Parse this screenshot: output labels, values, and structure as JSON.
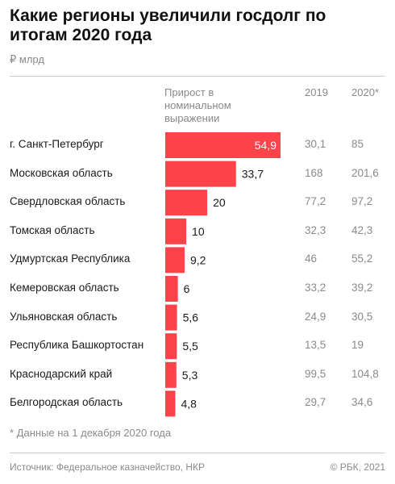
{
  "title": "Какие регионы увеличили госдолг по итогам 2020 года",
  "unit": "₽ млрд",
  "columns": {
    "growth": "Прирост в номинальном выражении",
    "y2019": "2019",
    "y2020": "2020*"
  },
  "footnote": "* Данные на 1 декабря 2020 года",
  "source": "Источник: Федеральное казначейство, НКР",
  "copyright": "© РБК, 2021",
  "colors": {
    "bar": "#fc4349",
    "value_inside": "#ffffff",
    "value_outside": "#1a1a1a"
  },
  "chart_data": {
    "type": "bar",
    "orientation": "horizontal",
    "categories": [
      "г. Санкт-Петербург",
      "Московская область",
      "Свердловская область",
      "Томская область",
      "Удмуртская Республика",
      "Кемеровская область",
      "Ульяновская область",
      "Республика Башкортостан",
      "Краснодарский край",
      "Белгородская область"
    ],
    "values": [
      54.9,
      33.7,
      20,
      10,
      9.2,
      6,
      5.6,
      5.5,
      5.3,
      4.8
    ],
    "value_labels": [
      "54,9",
      "33,7",
      "20",
      "10",
      "9,2",
      "6",
      "5,6",
      "5,5",
      "5,3",
      "4,8"
    ],
    "debt_2019": [
      "30,1",
      "168",
      "77,2",
      "32,3",
      "46",
      "33,2",
      "24,9",
      "13,5",
      "99,5",
      "29,7"
    ],
    "debt_2020": [
      "85",
      "201,6",
      "97,2",
      "42,3",
      "55,2",
      "39,2",
      "30,5",
      "19",
      "104,8",
      "34,6"
    ],
    "xlim": [
      0,
      54.9
    ],
    "grid": false
  }
}
